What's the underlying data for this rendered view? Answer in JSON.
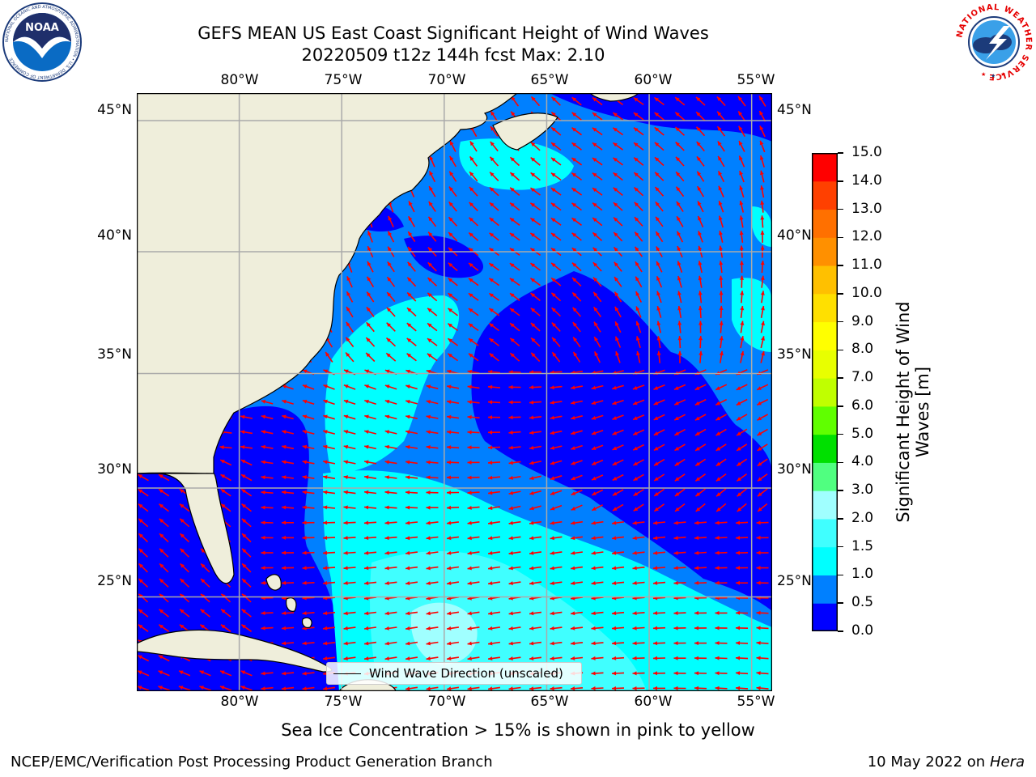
{
  "header": {
    "title_line1": "GEFS MEAN US East Coast Significant Height of Wind Waves",
    "title_line2": "20220509 t12z 144h fcst   Max: 2.10"
  },
  "map": {
    "lon_labels": [
      "80°W",
      "75°W",
      "70°W",
      "65°W",
      "60°W",
      "55°W"
    ],
    "lat_labels": [
      "45°N",
      "40°N",
      "35°N",
      "30°N",
      "25°N"
    ],
    "lon_range": [
      -85,
      -54
    ],
    "lat_range": [
      20.5,
      46
    ],
    "legend_label": "Wind Wave Direction (unscaled)",
    "arrow_color": "#ff0000",
    "land_color": "#efeedb"
  },
  "colorbar": {
    "label": "Significant Height of Wind Waves [m]",
    "ticks": [
      "0.0",
      "0.5",
      "1.0",
      "1.5",
      "2.0",
      "3.0",
      "4.0",
      "5.0",
      "6.0",
      "7.0",
      "8.0",
      "9.0",
      "10.0",
      "11.0",
      "12.0",
      "13.0",
      "14.0",
      "15.0"
    ],
    "colors": [
      "#0000ff",
      "#0080ff",
      "#00ffff",
      "#40ffff",
      "#a0ffff",
      "#50ff80",
      "#00e000",
      "#60ff00",
      "#c0ff00",
      "#e8ff00",
      "#ffff00",
      "#ffe000",
      "#ffc000",
      "#ff9000",
      "#ff7000",
      "#ff4000",
      "#ff0000"
    ]
  },
  "footer": {
    "note": "Sea Ice Concentration > 15% is shown in pink to yellow",
    "left": "NCEP/EMC/Verification Post Processing Product Generation Branch",
    "right_date": "10 May 2022 on",
    "right_machine": "Hera"
  },
  "logos": {
    "noaa_text": "NOAA",
    "noaa_ring": "NATIONAL OCEANIC AND ATMOSPHERIC ADMINISTRATION • U.S. DEPARTMENT OF COMMERCE",
    "nws_ring": "NATIONAL WEATHER SERVICE"
  }
}
